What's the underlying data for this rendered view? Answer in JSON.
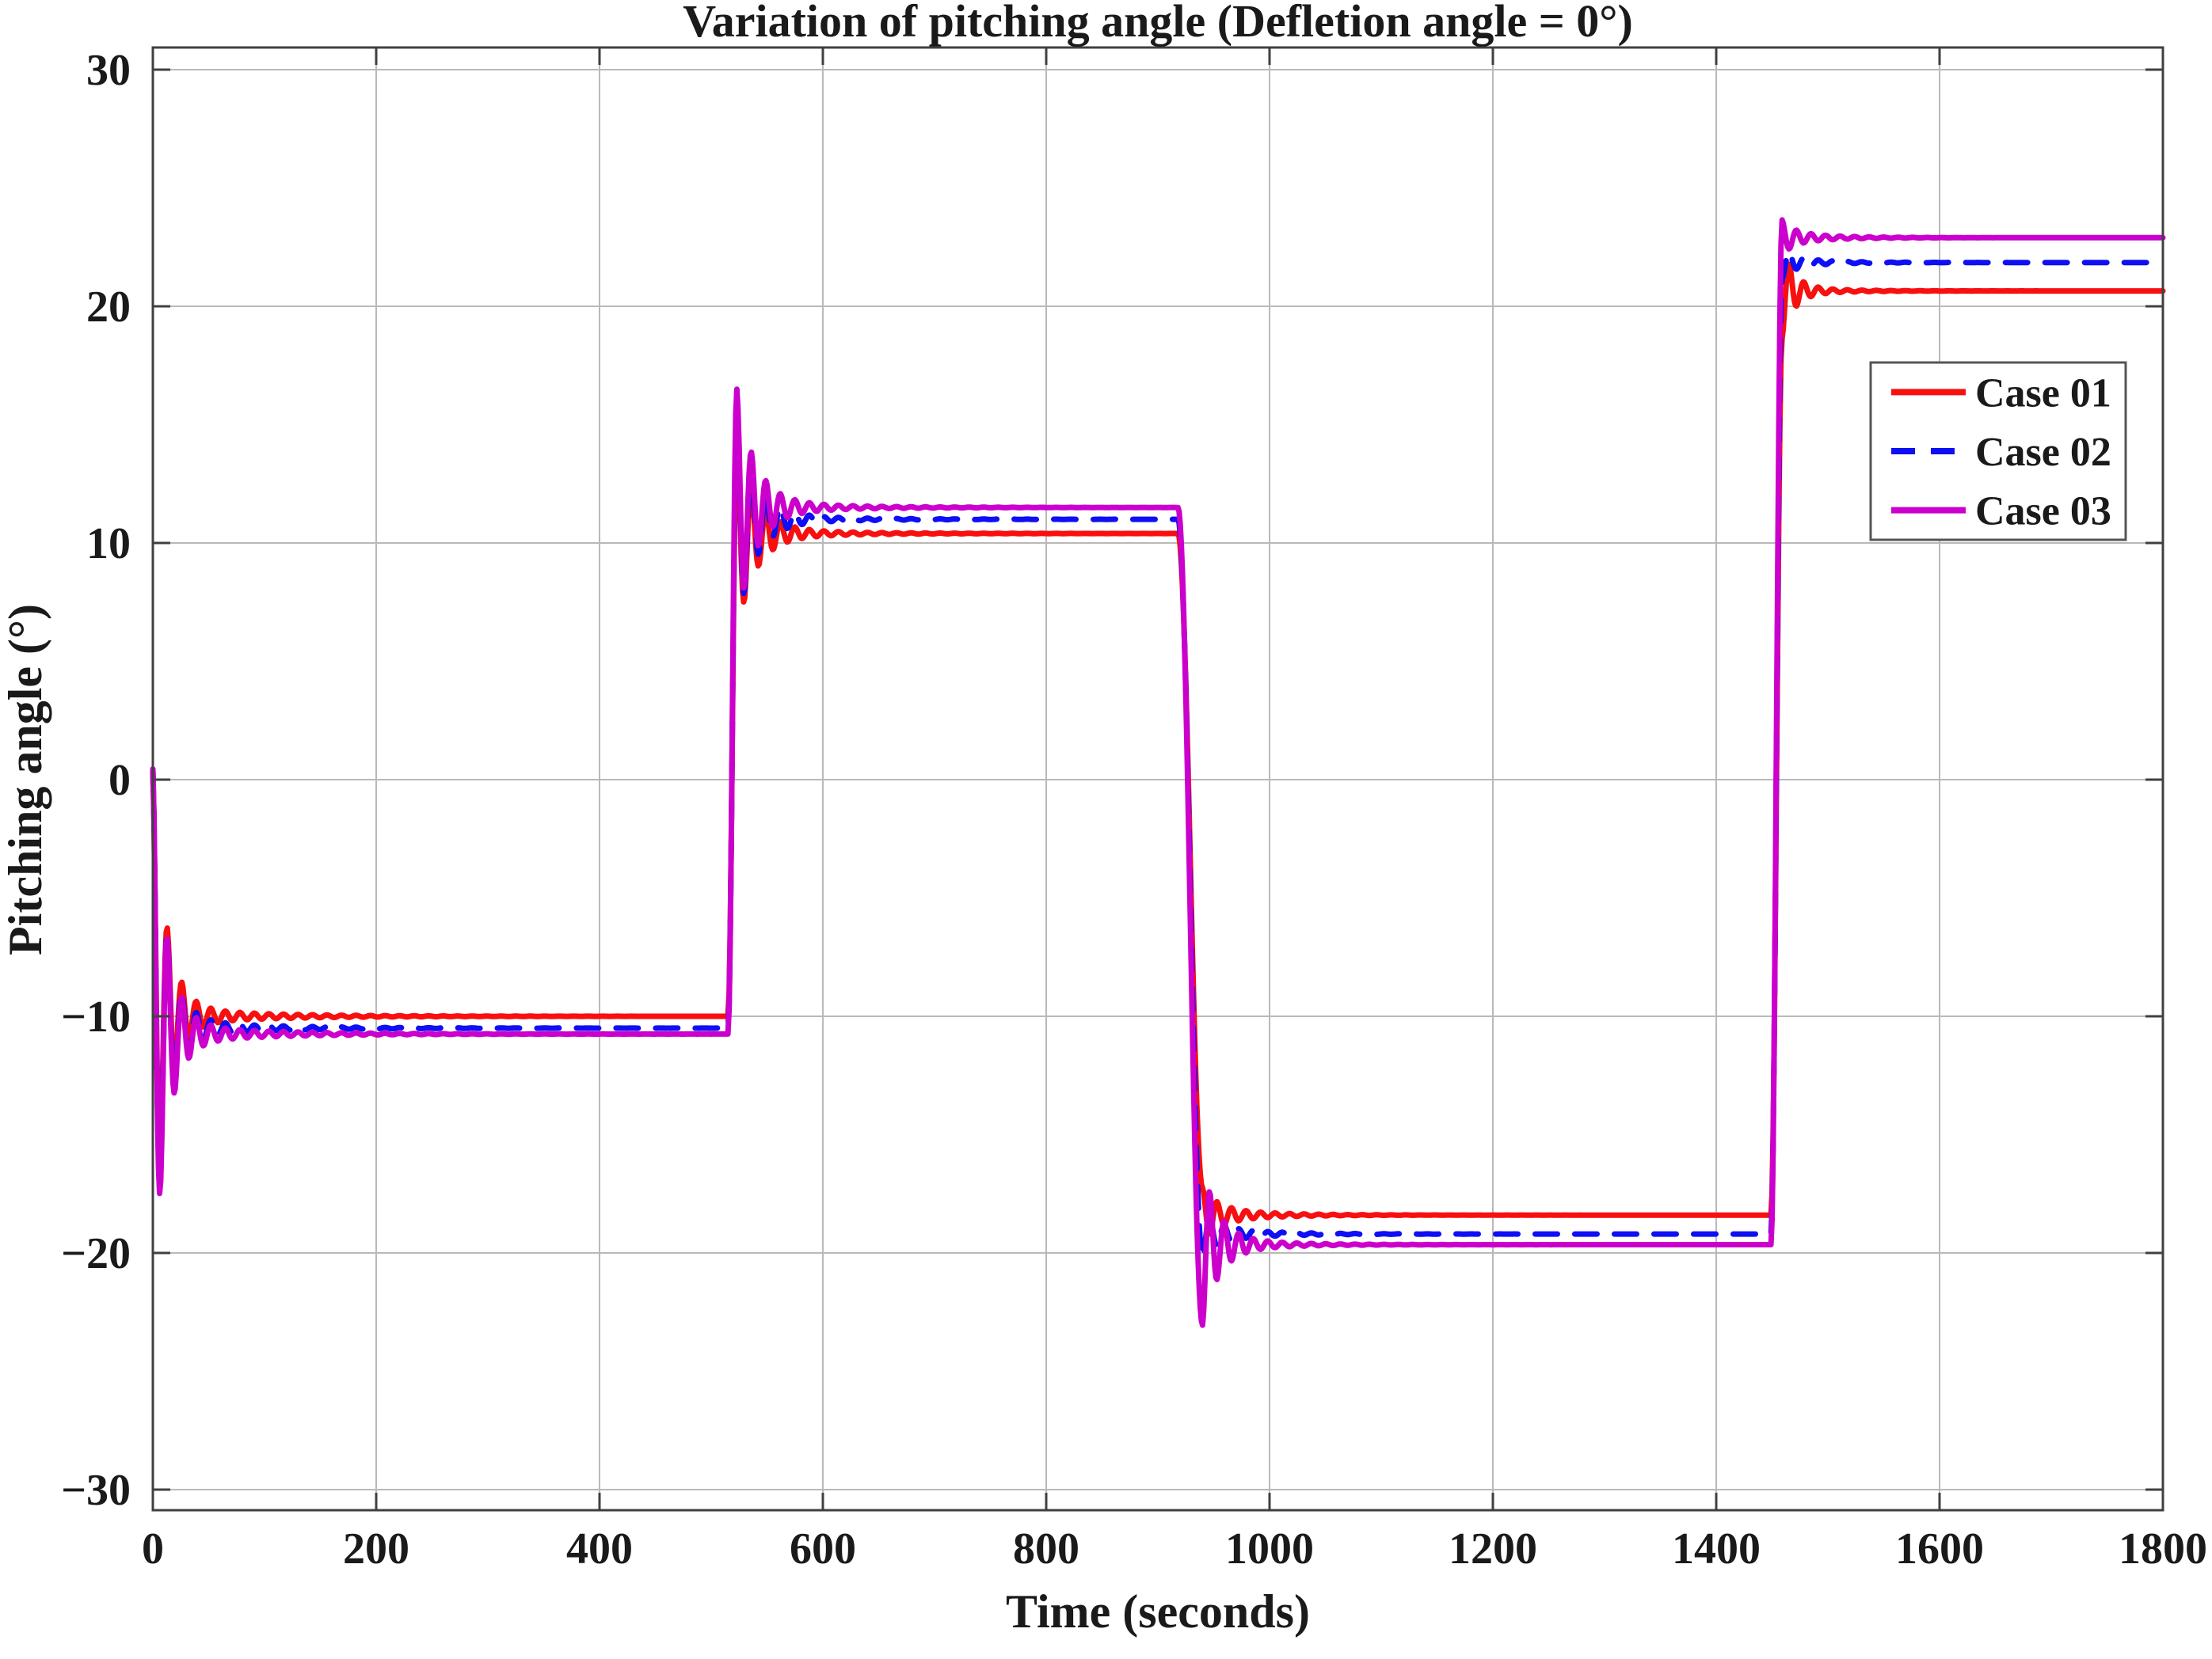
{
  "figure": {
    "background": "#ffffff"
  },
  "chart_data": {
    "type": "line",
    "title": "Variation of pitching angle (Defletion angle = 0°)",
    "xlabel": "Time (seconds)",
    "ylabel": "Pitching angle (°)",
    "xlim": [
      0,
      1800
    ],
    "ylim": [
      -30,
      30
    ],
    "grid": true,
    "xticks": [
      0,
      200,
      400,
      600,
      800,
      1000,
      1200,
      1400,
      1600,
      1800
    ],
    "yticks": [
      30,
      20,
      10,
      0,
      -10,
      -20,
      -30
    ],
    "legend": {
      "position": "upper-right-inset",
      "entries": [
        "Case 01",
        "Case 02",
        "Case 03"
      ]
    },
    "oscillation_period_s": 13,
    "steps": [
      {
        "t_step": 0,
        "t_arrive": 0
      },
      {
        "t_step": 515,
        "t_arrive": 523
      },
      {
        "t_step": 918,
        "t_arrive": 940
      },
      {
        "t_step": 1449,
        "t_arrive": 1459
      }
    ],
    "series": [
      {
        "name": "Case 01",
        "color": "#F80F0F",
        "line_style": "solid",
        "line_width": 7,
        "start_value": 0,
        "settle": [
          -10.0,
          10.4,
          -18.4,
          20.65
        ],
        "overshoot": [
          10.0,
          4.0,
          0.85,
          -1.8
        ],
        "tau": [
          12,
          16,
          14,
          10
        ],
        "ripple": [
          0.4,
          0.25,
          0.3,
          0.2
        ],
        "ripple_tau": [
          80,
          70,
          50,
          40
        ]
      },
      {
        "name": "Case 02",
        "color": "#0F0FF5",
        "line_style": "dashed",
        "dash": [
          28,
          22
        ],
        "line_width": 7,
        "start_value": 0,
        "settle": [
          -10.5,
          11.0,
          -19.2,
          21.85
        ],
        "overshoot": [
          10.5,
          4.35,
          -0.7,
          -0.5
        ],
        "tau": [
          12,
          16,
          14,
          10
        ],
        "ripple": [
          0.4,
          0.25,
          0.3,
          0.2
        ],
        "ripple_tau": [
          80,
          70,
          50,
          40
        ]
      },
      {
        "name": "Case 03",
        "color": "#CC00CC",
        "line_style": "solid",
        "line_width": 7,
        "start_value": 0,
        "settle": [
          -10.75,
          11.5,
          -19.65,
          22.9
        ],
        "overshoot": [
          10.75,
          4.7,
          -3.05,
          0.5
        ],
        "tau": [
          12,
          16,
          14,
          10
        ],
        "ripple": [
          0.45,
          0.3,
          0.35,
          0.25
        ],
        "ripple_tau": [
          80,
          70,
          50,
          40
        ]
      }
    ]
  },
  "axis_style": {
    "spine_color": "#404040",
    "grid_color": "#b9b9b9",
    "tick_color": "#404040"
  }
}
